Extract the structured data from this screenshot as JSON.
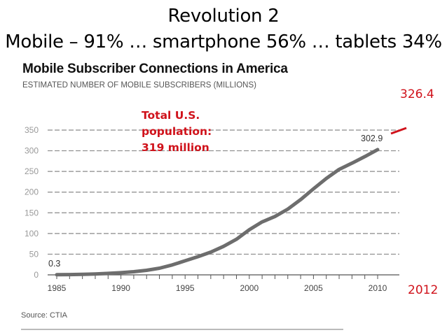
{
  "slide": {
    "title_line1": "Revolution 2",
    "title_line2": "Mobile – 91% … smartphone 56% … tablets 34%"
  },
  "annotations": {
    "population_lines": [
      "Total U.S.",
      "population:",
      "319 million"
    ],
    "projected_value": "326.4",
    "projected_year": "2012",
    "accent_color": "#d0121b"
  },
  "source": "Source: CTIA",
  "chart_data": {
    "type": "line",
    "title": "Mobile Subscriber Connections in America",
    "subtitle": "ESTIMATED NUMBER OF MOBILE SUBSCRIBERS (MILLIONS)",
    "xlabel": "",
    "ylabel": "",
    "x": [
      1985,
      1986,
      1987,
      1988,
      1989,
      1990,
      1991,
      1992,
      1993,
      1994,
      1995,
      1996,
      1997,
      1998,
      1999,
      2000,
      2001,
      2002,
      2003,
      2004,
      2005,
      2006,
      2007,
      2008,
      2009,
      2010
    ],
    "series": [
      {
        "name": "Mobile subscribers (millions)",
        "color": "#6d6d6d",
        "values": [
          0.3,
          0.7,
          1.2,
          2.1,
          3.5,
          5.3,
          7.6,
          11,
          16,
          24,
          34,
          44,
          55,
          69,
          86,
          109,
          128,
          141,
          159,
          182,
          208,
          233,
          255,
          270,
          286,
          302.9
        ]
      }
    ],
    "data_labels": [
      {
        "x": 1985,
        "y": 0.3,
        "text": "0.3"
      },
      {
        "x": 2010,
        "y": 302.9,
        "text": "302.9"
      }
    ],
    "xlim": [
      1985,
      2012
    ],
    "ylim": [
      0,
      350
    ],
    "xticks": [
      1985,
      1990,
      1995,
      2000,
      2005,
      2010
    ],
    "yticks": [
      0,
      50,
      100,
      150,
      200,
      250,
      300,
      350
    ],
    "grid": true,
    "grid_style": "dashed-horizontal",
    "legend": "none"
  }
}
